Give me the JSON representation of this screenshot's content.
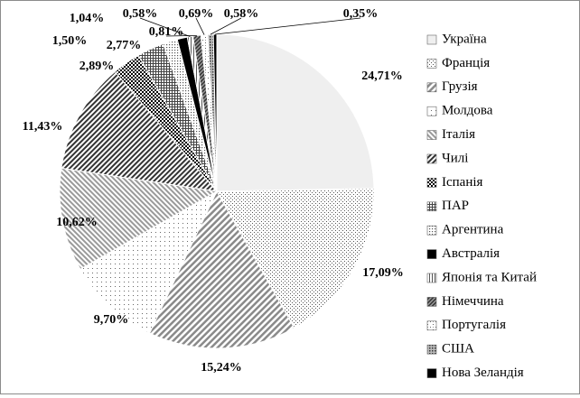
{
  "chart_data": {
    "type": "pie",
    "title": "",
    "legend_position": "right",
    "categories": [
      "Україна",
      "Франція",
      "Грузія",
      "Молдова",
      "Італія",
      "Чилі",
      "Іспанія",
      "ПАР",
      "Аргентина",
      "Австралія",
      "Японія та Китай",
      "Німеччина",
      "Португалія",
      "США",
      "Нова Зеландія"
    ],
    "values": [
      24.71,
      17.09,
      15.24,
      9.7,
      10.62,
      11.43,
      2.89,
      2.77,
      1.5,
      1.04,
      0.58,
      0.81,
      0.69,
      0.58,
      0.35
    ],
    "data_labels": [
      "24,71%",
      "17,09%",
      "15,24%",
      "9,70%",
      "10,62%",
      "11,43%",
      "2,89%",
      "2,77%",
      "1,50%",
      "1,04%",
      "0,58%",
      "0,81%",
      "0,69%",
      "0,58%",
      "0,35%"
    ],
    "patterns": [
      "light",
      "dots-fine",
      "diag-right",
      "dots-sparse",
      "diag-light",
      "diag-dense",
      "checker",
      "grid",
      "dots-medium",
      "solid",
      "vertical",
      "diag-dark",
      "cross-light",
      "dots-heavy",
      "solid"
    ]
  }
}
